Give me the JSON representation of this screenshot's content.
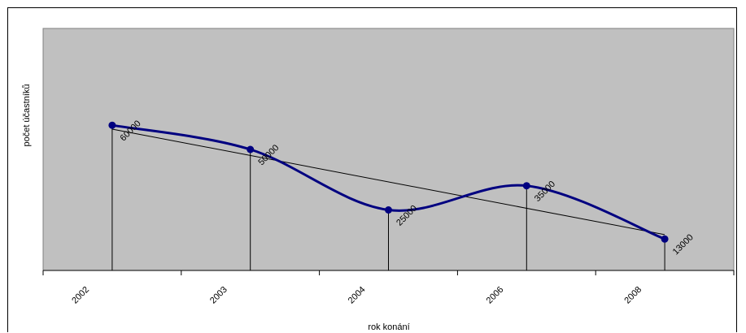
{
  "chart_data": {
    "type": "line",
    "categories": [
      "2002",
      "2003",
      "2004",
      "2006",
      "2008"
    ],
    "series": [
      {
        "values": [
          60000,
          50000,
          25000,
          35000,
          13000
        ],
        "color": "#000080",
        "smooth": true,
        "markers": true
      }
    ],
    "data_labels": [
      "60000",
      "50000",
      "25000",
      "35000",
      "13000"
    ],
    "trendline": {
      "type": "linear",
      "color": "#000000"
    },
    "drop_lines": true,
    "xlabel": "rok konání",
    "ylabel": "počet účastníků",
    "ylim": [
      0,
      100000
    ],
    "plot_background": "#c0c0c0",
    "grid": false,
    "legend": "none"
  }
}
